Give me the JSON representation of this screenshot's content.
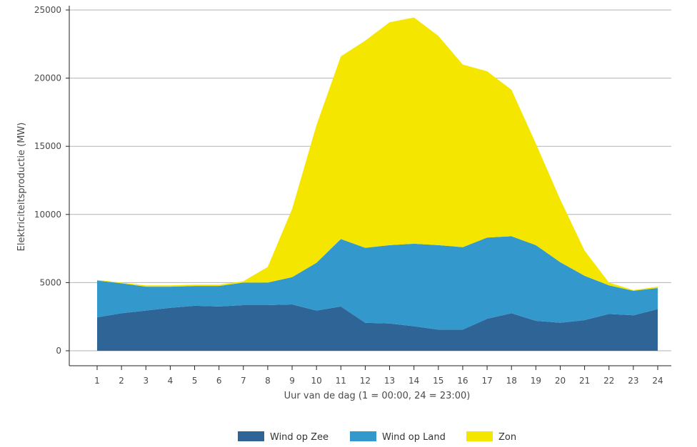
{
  "chart_data": {
    "type": "area",
    "stacked": true,
    "xlabel": "Uur van de dag (1 = 00:00, 24 = 23:00)",
    "ylabel": "Elektriciteitsproductie (MW)",
    "ylim": [
      0,
      25000
    ],
    "yticks": [
      0,
      5000,
      10000,
      15000,
      20000,
      25000
    ],
    "categories": [
      1,
      2,
      3,
      4,
      5,
      6,
      7,
      8,
      9,
      10,
      11,
      12,
      13,
      14,
      15,
      16,
      17,
      18,
      19,
      20,
      21,
      22,
      23,
      24
    ],
    "grid": "horizontal",
    "legend_position": "bottom",
    "series": [
      {
        "name": "Wind op Zee",
        "color": "#2f6496",
        "values": [
          2450,
          2750,
          2950,
          3150,
          3300,
          3250,
          3350,
          3350,
          3400,
          2950,
          3250,
          2050,
          2000,
          1800,
          1550,
          1550,
          2350,
          2750,
          2200,
          2050,
          2250,
          2700,
          2600,
          3050
        ]
      },
      {
        "name": "Wind op Land",
        "color": "#3399cc",
        "values": [
          2700,
          2200,
          1750,
          1550,
          1450,
          1500,
          1650,
          1650,
          2000,
          3500,
          4950,
          5500,
          5750,
          6050,
          6200,
          6050,
          5950,
          5650,
          5550,
          4450,
          3250,
          2100,
          1800,
          1550
        ]
      },
      {
        "name": "Zon",
        "color": "#f5e600",
        "values": [
          50,
          50,
          100,
          100,
          100,
          100,
          100,
          1150,
          5000,
          10100,
          13400,
          15200,
          16350,
          16600,
          15350,
          13400,
          12200,
          10750,
          7450,
          4600,
          1850,
          200,
          50,
          100
        ]
      }
    ]
  }
}
